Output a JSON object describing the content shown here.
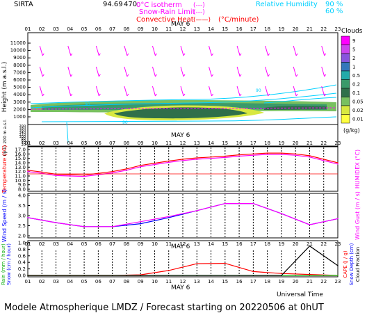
{
  "header": {
    "station": "SIRTA",
    "coords": "94.69",
    "coords_tail": "470",
    "legend_lines": [
      {
        "label": "0°C isotherm",
        "symbol": "(---)",
        "color": "#ff00ff"
      },
      {
        "label": "Snow-Rain Limit",
        "symbol": "(---)",
        "color": "#ff00ff"
      },
      {
        "label": "Convective Heat",
        "symbol": "(——)",
        "unit": "(°C/minute)",
        "color": "#ff0000"
      }
    ],
    "rh_label": "Relative Humidity",
    "rh_levels": [
      "90 %",
      "60 %"
    ],
    "rh_color": "#00d0ff"
  },
  "time_axis": {
    "hours": [
      "01",
      "02",
      "03",
      "04",
      "05",
      "06",
      "07",
      "08",
      "09",
      "10",
      "11",
      "12",
      "13",
      "14",
      "15",
      "16",
      "17",
      "18",
      "19",
      "20",
      "21",
      "22",
      "23"
    ],
    "date_label": "MAY 6",
    "universal_time_label": "Universal Time"
  },
  "footer": {
    "title": "Modele Atmospherique LMDZ / Forecast starting on 20220506 at 0hUT"
  },
  "panels": {
    "clouds": {
      "ylabel": "Height (m a.s.l.)",
      "ylabel_low": "Up to 200 m a.s.l.",
      "upper_ticks": [
        "11000",
        "10000",
        "9000",
        "8000",
        "7000",
        "6000",
        "5000",
        "4000",
        "3000",
        "2000",
        "1000"
      ],
      "lower_ticks": [
        "200",
        "180",
        "160",
        "140",
        "120",
        "100",
        "80",
        "60",
        "40",
        "20"
      ],
      "legend_title": "Clouds",
      "legend_levels": [
        "9",
        "5",
        "2",
        "1",
        "0.5",
        "0.2",
        "0.1",
        "0.05",
        "0.02",
        "0.01"
      ],
      "legend_colors": [
        "#ff00ff",
        "#cc44ee",
        "#8855dd",
        "#3377bb",
        "#22aaaa",
        "#3a9a6a",
        "#2f6f4a",
        "#78c060",
        "#d8e840",
        "#ffff40"
      ],
      "legend_unit": "(g/kg)",
      "rh_contour_label": "90"
    },
    "temperature": {
      "ylabel": "Temperature (°C)",
      "ylabel_right": "HUMIDEX (°C)",
      "ticks": [
        "17.0",
        "16.0",
        "15.0",
        "14.0",
        "13.0",
        "12.0",
        "11.0",
        "10.0",
        "9.0",
        "8.0"
      ],
      "series_color": "#ff0000",
      "humidex_color": "#ff00ff"
    },
    "wind": {
      "ylabel": "Wind Speed (m / s)",
      "ylabel_right": "Wind Gust (m / s)",
      "ticks": [
        "4.0",
        "3.5",
        "3.0",
        "2.5",
        "2.0"
      ],
      "series_color": "#0000ff",
      "gust_color": "#ff00ff"
    },
    "rain": {
      "ylabel": "Rain (mm / hour)",
      "ylabel2": "Snow (cm / hour)",
      "ylabel_right": "CAPE (J / g)",
      "ylabel_right2": "Snow Depth (cm)",
      "ylabel_right3": "Cloud Fraction",
      "ticks": [
        "1.0",
        "0.8",
        "0.6",
        "0.4",
        "0.2",
        "0.0"
      ]
    }
  },
  "chart_data": [
    {
      "type": "line",
      "panel": "temperature",
      "x": [
        "01",
        "02",
        "03",
        "04",
        "05",
        "06",
        "07",
        "08",
        "09",
        "10",
        "11",
        "12",
        "13",
        "14",
        "15",
        "16",
        "17",
        "18",
        "19",
        "20",
        "21",
        "22",
        "23"
      ],
      "series": [
        {
          "values": [
            12.3,
            11.9,
            11.4,
            11.3,
            11.2,
            11.6,
            12.0,
            12.6,
            13.4,
            13.9,
            14.4,
            14.8,
            15.1,
            15.3,
            15.5,
            15.8,
            16.0,
            16.2,
            16.2,
            16.0,
            15.6,
            14.8,
            14.0
          ]
        },
        {
          "values": [
            12.0,
            11.6,
            11.1,
            11.0,
            10.9,
            11.3,
            11.7,
            12.3,
            13.1,
            13.6,
            14.1,
            14.5,
            14.8,
            15.0,
            15.2,
            15.5,
            15.7,
            15.9,
            15.9,
            15.7,
            15.3,
            14.5,
            13.7
          ]
        }
      ],
      "ylim": [
        8.0,
        17.0
      ]
    },
    {
      "type": "line",
      "panel": "wind",
      "x": [
        "01",
        "03",
        "05",
        "07",
        "09",
        "11",
        "13",
        "15",
        "17",
        "19",
        "21",
        "23"
      ],
      "series": [
        {
          "values": [
            2.9,
            2.65,
            2.45,
            2.45,
            2.6,
            2.9,
            3.25,
            3.6,
            3.6,
            3.1,
            2.55,
            2.85
          ]
        },
        {
          "values": [
            2.9,
            2.65,
            2.45,
            2.45,
            2.7,
            2.95,
            3.25,
            3.6,
            3.6,
            3.1,
            2.55,
            2.85
          ]
        }
      ],
      "ylim": [
        2.0,
        4.0
      ]
    },
    {
      "type": "line",
      "panel": "rain",
      "x": [
        "01",
        "03",
        "05",
        "07",
        "09",
        "11",
        "13",
        "15",
        "17",
        "19",
        "21",
        "23"
      ],
      "series": [
        {
          "values": [
            0.0,
            0.0,
            0.0,
            0.0,
            0.02,
            0.15,
            0.36,
            0.37,
            0.12,
            0.06,
            0.03,
            0.0
          ]
        },
        {
          "values": [
            0.0,
            0.0,
            0.0,
            0.0,
            0.0,
            0.0,
            0.0,
            0.0,
            0.0,
            0.0,
            0.0,
            0.0
          ]
        },
        {
          "values": [
            0.0,
            0.0,
            0.0,
            0.0,
            0.0,
            0.0,
            0.0,
            0.0,
            0.0,
            0.0,
            0.9,
            0.3
          ]
        }
      ],
      "ylim": [
        0.0,
        1.0
      ]
    }
  ]
}
